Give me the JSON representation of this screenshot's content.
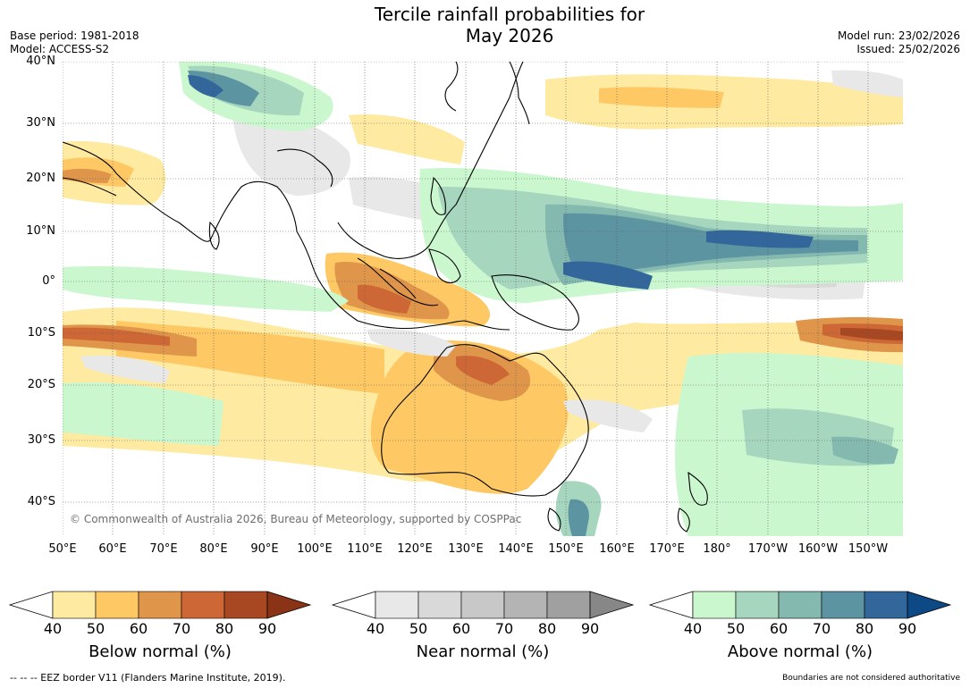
{
  "title_line1": "Tercile rainfall probabilities for",
  "title_line2": "May 2026",
  "base_period": "Base period: 1981-2018",
  "model": "Model: ACCESS-S2",
  "model_run": "Model run: 23/02/2026",
  "issued": "Issued: 25/02/2026",
  "copyright": "© Commonwealth of Australia 2026, Bureau of Meteorology, supported by COSPPac",
  "lat_labels": [
    "40°N",
    "30°N",
    "20°N",
    "10°N",
    "0°",
    "10°S",
    "20°S",
    "30°S",
    "40°S"
  ],
  "lon_labels": [
    "50°E",
    "60°E",
    "70°E",
    "80°E",
    "90°E",
    "100°E",
    "110°E",
    "120°E",
    "130°E",
    "140°E",
    "150°E",
    "160°E",
    "170°E",
    "180°",
    "170°W",
    "160°W",
    "150°W"
  ],
  "colorbars": [
    {
      "title": "Below normal (%)",
      "ticks": [
        "40",
        "50",
        "60",
        "70",
        "80",
        "90"
      ],
      "colors": [
        "#feeaa0",
        "#fec964",
        "#e0964a",
        "#cd6836",
        "#a84822",
        "#8b3317"
      ]
    },
    {
      "title": "Near normal (%)",
      "ticks": [
        "40",
        "50",
        "60",
        "70",
        "80",
        "90"
      ],
      "colors": [
        "#e8e8e8",
        "#d9d9d9",
        "#c8c8c8",
        "#b4b4b4",
        "#a0a0a0",
        "#878787"
      ]
    },
    {
      "title": "Above normal (%)",
      "ticks": [
        "40",
        "50",
        "60",
        "70",
        "80",
        "90"
      ],
      "colors": [
        "#cbf7cf",
        "#a6d7be",
        "#84b9b0",
        "#5d94a2",
        "#33669a",
        "#0d4a85"
      ]
    }
  ],
  "footer_left": "--  --  -- EEZ border V11 (Flanders Marine Institute, 2019).",
  "footer_right": "Boundaries are not considered authoritative"
}
